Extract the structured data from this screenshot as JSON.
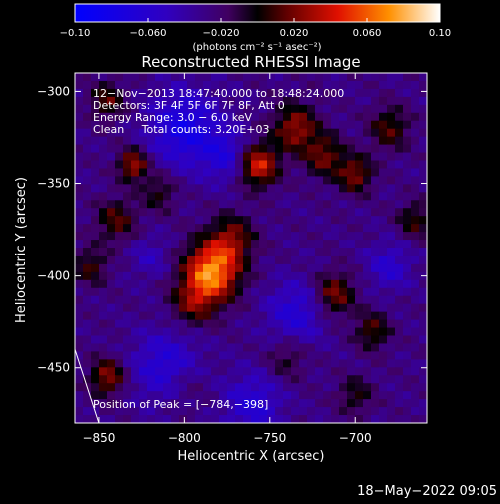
{
  "chart_data": {
    "type": "heatmap",
    "title": "Reconstructed RHESSI Image",
    "xlabel": "Heliocentric X (arcsec)",
    "ylabel": "Heliocentric Y (arcsec)",
    "xlim": [
      -864,
      -658
    ],
    "ylim": [
      -480,
      -290
    ],
    "x_ticks": [
      -850,
      -800,
      -750,
      -700
    ],
    "y_ticks": [
      -450,
      -400,
      -350,
      -300
    ],
    "x_tick_labels": [
      "−850",
      "−800",
      "−750",
      "−700"
    ],
    "y_tick_labels": [
      "−450",
      "−400",
      "−350",
      "−300"
    ],
    "colorbar": {
      "range": [
        -0.1,
        0.1
      ],
      "ticks": [
        -0.1,
        -0.06,
        -0.02,
        0.02,
        0.06,
        0.1
      ],
      "tick_labels": [
        "−0.10",
        "−0.060",
        "−0.020",
        "0.020",
        "0.060",
        "0.10"
      ],
      "units": "(photons cm⁻² s⁻¹ asec⁻²)"
    },
    "annotations": [
      "12−Nov−2013 18:47:40.000 to 18:48:24.000",
      "Detectors: 3F 4F 5F 6F 7F 8F, Att 0",
      "Energy Range: 3.0 − 6.0 keV",
      "Clean     Total counts: 3.20E+03",
      "Position of Peak = [−784,−398]"
    ],
    "peak": [
      -784,
      -398
    ],
    "sources": [
      {
        "x": -784,
        "y": -398,
        "amp": 0.1,
        "sigma": 11
      },
      {
        "x": -772,
        "y": -380,
        "amp": 0.045,
        "sigma": 9
      },
      {
        "x": -795,
        "y": -415,
        "amp": 0.04,
        "sigma": 9
      },
      {
        "x": -757,
        "y": -340,
        "amp": 0.075,
        "sigma": 8
      },
      {
        "x": -735,
        "y": -320,
        "amp": 0.055,
        "sigma": 9
      },
      {
        "x": -718,
        "y": -335,
        "amp": 0.045,
        "sigma": 8
      },
      {
        "x": -700,
        "y": -345,
        "amp": 0.05,
        "sigma": 7
      },
      {
        "x": -680,
        "y": -320,
        "amp": 0.04,
        "sigma": 8
      },
      {
        "x": -665,
        "y": -370,
        "amp": 0.035,
        "sigma": 7
      },
      {
        "x": -830,
        "y": -340,
        "amp": 0.06,
        "sigma": 6
      },
      {
        "x": -845,
        "y": -305,
        "amp": 0.04,
        "sigma": 7
      },
      {
        "x": -840,
        "y": -370,
        "amp": 0.04,
        "sigma": 8
      },
      {
        "x": -855,
        "y": -395,
        "amp": 0.035,
        "sigma": 7
      },
      {
        "x": -845,
        "y": -455,
        "amp": 0.055,
        "sigma": 7
      },
      {
        "x": -815,
        "y": -355,
        "amp": 0.03,
        "sigma": 7
      },
      {
        "x": -712,
        "y": -410,
        "amp": 0.05,
        "sigma": 8
      },
      {
        "x": -690,
        "y": -430,
        "amp": 0.04,
        "sigma": 7
      },
      {
        "x": -740,
        "y": -445,
        "amp": 0.025,
        "sigma": 8
      },
      {
        "x": -800,
        "y": -460,
        "amp": 0.02,
        "sigma": 10
      },
      {
        "x": -700,
        "y": -465,
        "amp": 0.03,
        "sigma": 7
      }
    ],
    "negative_regions": [
      {
        "x": -800,
        "y": -320,
        "amp": -0.05,
        "sigma": 14
      },
      {
        "x": -775,
        "y": -335,
        "amp": -0.035,
        "sigma": 10
      },
      {
        "x": -810,
        "y": -450,
        "amp": -0.04,
        "sigma": 14
      },
      {
        "x": -760,
        "y": -470,
        "amp": -0.035,
        "sigma": 12
      },
      {
        "x": -735,
        "y": -420,
        "amp": -0.035,
        "sigma": 12
      },
      {
        "x": -680,
        "y": -395,
        "amp": -0.03,
        "sigma": 9
      },
      {
        "x": -820,
        "y": -390,
        "amp": -0.02,
        "sigma": 8
      }
    ],
    "limb_line": [
      [
        -864,
        -440
      ],
      [
        -850,
        -480
      ]
    ],
    "grid": false
  },
  "footer": {
    "timestamp": "18−May−2022 09:05"
  }
}
